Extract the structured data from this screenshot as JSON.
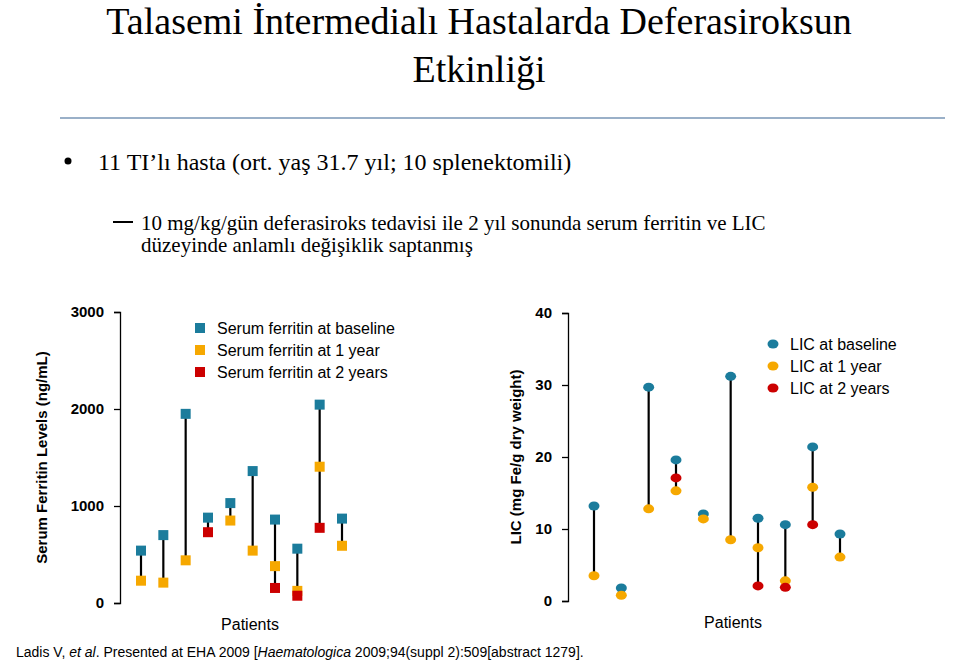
{
  "slide": {
    "title": [
      "Talasemi İntermedialı Hastalarda Deferasiroksun",
      "Etkinliği"
    ],
    "bullet": "11 TI’lı hasta (ort. yaş 31.7 yıl; 10 splenektomili)",
    "sub_bullet": [
      "10 mg/kg/gün deferasiroks tedavisi ile 2 yıl sonunda serum ferritin ve LIC",
      "düzeyinde anlamlı değişiklik saptanmış"
    ],
    "source": [
      "Ladis V, ",
      "et al",
      ". Presented at EHA 2009 [",
      "Haematologica",
      " 2009;94(suppl 2):509[abstract 1279]."
    ]
  },
  "chart_data": [
    {
      "type": "dot",
      "x_label": "Patients",
      "y_label": "Serum Ferritin Levels (ng/mL)",
      "categories": [
        null,
        null,
        null,
        null,
        null,
        null,
        null,
        null,
        null,
        null
      ],
      "ylim": [
        0,
        3000
      ],
      "yticks": [
        0,
        1000,
        2000,
        3000
      ],
      "tick_labels": "y",
      "legend": "upper left",
      "series": [
        {
          "name": "Serum ferritin at baseline",
          "color": "#1b7c9c",
          "marker": "square",
          "values": [
            540,
            700,
            1950,
            880,
            1030,
            1360,
            860,
            560,
            2045,
            870
          ]
        },
        {
          "name": "Serum ferritin at 1 year",
          "color": "#f6a800",
          "marker": "square",
          "values": [
            230,
            210,
            440,
            null,
            850,
            540,
            380,
            125,
            1405,
            590
          ]
        },
        {
          "name": "Serum ferritin at 2 years",
          "color": "#cc0000",
          "marker": "square",
          "values": [
            null,
            null,
            null,
            730,
            null,
            null,
            155,
            75,
            775,
            null
          ]
        }
      ]
    },
    {
      "type": "dot",
      "x_label": "Patients",
      "y_label": "LIC (mg Fe/g dry weight)",
      "categories": [
        null,
        null,
        null,
        null,
        null,
        null,
        null,
        null,
        null,
        null
      ],
      "ylim": [
        0,
        40
      ],
      "yticks": [
        0,
        10,
        20,
        30,
        40
      ],
      "tick_labels": "y",
      "legend": "upper right",
      "series": [
        {
          "name": "LIC at baseline",
          "color": "#1b7c9c",
          "marker": "circle",
          "values": [
            13.2,
            1.8,
            29.7,
            19.6,
            12.1,
            31.2,
            11.5,
            10.6,
            21.4,
            9.3
          ]
        },
        {
          "name": "LIC at 1 year",
          "color": "#f6a800",
          "marker": "circle",
          "values": [
            3.5,
            0.8,
            12.8,
            15.3,
            11.4,
            8.5,
            7.4,
            2.8,
            15.8,
            6.1
          ]
        },
        {
          "name": "LIC at 2 years",
          "color": "#cc0000",
          "marker": "circle",
          "values": [
            null,
            null,
            null,
            17.1,
            null,
            null,
            2.1,
            1.9,
            10.6,
            null
          ]
        }
      ]
    }
  ]
}
